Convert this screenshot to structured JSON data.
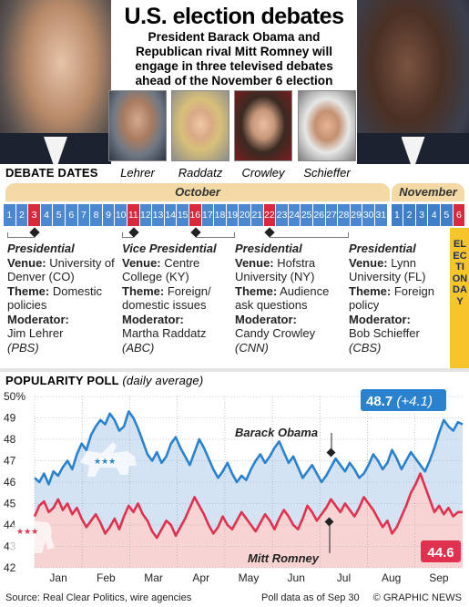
{
  "header": {
    "title": "U.S. election debates",
    "subtitle": "President Barack Obama and Republican rival Mitt Romney will engage in three televised debates ahead of the November 6 election"
  },
  "moderators": [
    "Lehrer",
    "Raddatz",
    "Crowley",
    "Schieffer"
  ],
  "debate_dates": {
    "title": "DEBATE DATES",
    "october_label": "October",
    "november_label": "November",
    "october_days": [
      "1",
      "2",
      "3",
      "4",
      "5",
      "6",
      "7",
      "8",
      "9",
      "10",
      "11",
      "12",
      "13",
      "14",
      "15",
      "16",
      "17",
      "18",
      "19",
      "20",
      "21",
      "22",
      "23",
      "24",
      "25",
      "26",
      "27",
      "28",
      "29",
      "30",
      "31"
    ],
    "november_days": [
      "1",
      "2",
      "3",
      "4",
      "5",
      "6"
    ],
    "highlighted_october": [
      3,
      11,
      16,
      22
    ],
    "election_day_label": "ELECTION DAY"
  },
  "debates": [
    {
      "type": "Presidential",
      "venue_label": "Venue:",
      "venue": "University of Denver (CO)",
      "theme_label": "Theme:",
      "theme": "Domestic policies",
      "moderator_label": "Moderator:",
      "moderator": "Jim Lehrer",
      "network": "(PBS)"
    },
    {
      "type": "Vice Presidential",
      "venue_label": "Venue:",
      "venue": "Centre College (KY)",
      "theme_label": "Theme:",
      "theme": "Foreign/ domestic issues",
      "moderator_label": "Moderator:",
      "moderator": "Martha Raddatz",
      "network": "(ABC)"
    },
    {
      "type": "Presidential",
      "venue_label": "Venue:",
      "venue": "Hofstra University (NY)",
      "theme_label": "Theme:",
      "theme": "Audience ask questions",
      "moderator_label": "Moderator:",
      "moderator": "Candy Crowley",
      "network": "(CNN)"
    },
    {
      "type": "Presidential",
      "venue_label": "Venue:",
      "venue": "Lynn University (FL)",
      "theme_label": "Theme:",
      "theme": "Foreign policy",
      "moderator_label": "Moderator:",
      "moderator": "Bob Schieffer",
      "network": "(CBS)"
    }
  ],
  "poll": {
    "title": "POPULARITY POLL",
    "subtitle": "(daily average)"
  },
  "chart_data": {
    "type": "line",
    "ylim": [
      42,
      50
    ],
    "y_ticks": [
      "50%",
      "49",
      "48",
      "47",
      "46",
      "45",
      "44",
      "43",
      "42"
    ],
    "x_labels": [
      "Jan",
      "Feb",
      "Mar",
      "Apr",
      "May",
      "Jun",
      "Jul",
      "Aug",
      "Sep"
    ],
    "grid": true,
    "series": [
      {
        "name": "Barack Obama",
        "color": "#2a82cf",
        "final_value": "48.7",
        "final_change": "(+4.1)",
        "values": [
          46.2,
          46.0,
          46.4,
          45.9,
          46.5,
          46.3,
          46.7,
          47.0,
          46.6,
          47.3,
          47.8,
          47.5,
          48.2,
          48.6,
          48.9,
          48.7,
          49.2,
          48.9,
          48.4,
          48.6,
          49.3,
          49.0,
          48.5,
          47.9,
          47.3,
          47.0,
          47.4,
          46.9,
          47.2,
          47.8,
          48.1,
          47.6,
          47.2,
          46.8,
          47.4,
          48.0,
          47.6,
          47.1,
          46.6,
          46.2,
          46.5,
          46.9,
          46.4,
          46.0,
          46.3,
          46.1,
          46.6,
          47.0,
          47.3,
          46.9,
          47.2,
          47.6,
          47.9,
          47.4,
          46.9,
          47.2,
          46.7,
          46.2,
          46.5,
          46.8,
          46.4,
          46.0,
          46.3,
          46.7,
          47.1,
          46.8,
          46.5,
          46.9,
          46.6,
          46.2,
          46.4,
          46.8,
          47.3,
          47.0,
          46.6,
          46.9,
          47.5,
          47.1,
          46.6,
          47.0,
          47.4,
          47.1,
          46.8,
          46.5,
          47.0,
          47.6,
          48.3,
          48.9,
          48.6,
          48.4,
          48.8,
          48.7
        ]
      },
      {
        "name": "Mitt Romney",
        "color": "#e0314f",
        "final_value": "44.6",
        "values": [
          44.4,
          44.9,
          45.1,
          44.6,
          44.8,
          45.2,
          44.7,
          45.0,
          44.5,
          44.8,
          44.3,
          43.9,
          44.2,
          44.5,
          44.1,
          43.6,
          43.9,
          44.3,
          43.8,
          44.4,
          44.9,
          44.6,
          45.0,
          44.5,
          44.2,
          43.7,
          43.4,
          43.8,
          44.2,
          44.0,
          43.5,
          43.9,
          44.3,
          44.8,
          45.3,
          44.9,
          44.5,
          44.0,
          43.6,
          43.9,
          44.4,
          44.0,
          43.8,
          44.2,
          44.6,
          44.3,
          44.0,
          43.7,
          44.1,
          44.5,
          44.2,
          43.8,
          44.3,
          44.7,
          44.4,
          44.0,
          43.8,
          44.3,
          44.9,
          44.6,
          44.2,
          44.5,
          44.8,
          45.2,
          44.9,
          44.6,
          45.0,
          44.7,
          44.4,
          44.8,
          45.3,
          45.0,
          44.7,
          44.3,
          43.9,
          44.2,
          43.6,
          43.9,
          44.4,
          44.9,
          45.5,
          45.9,
          46.4,
          45.8,
          45.2,
          44.6,
          44.9,
          44.5,
          44.8,
          44.4,
          44.6,
          44.6
        ]
      }
    ]
  },
  "footer": {
    "source": "Source: Real Clear Politics, wire agencies",
    "poll_date": "Poll data as of Sep 30",
    "credit": "© GRAPHIC NEWS"
  }
}
